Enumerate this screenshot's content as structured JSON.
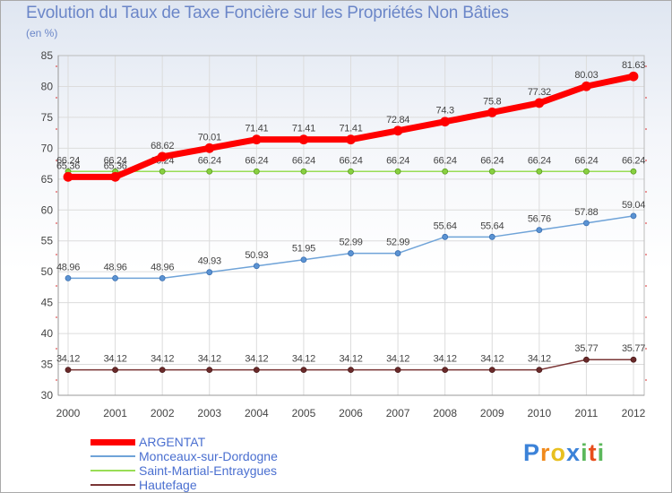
{
  "header": {
    "title": "Evolution du Taux de Taxe Foncière sur les Propriétés Non Bâties",
    "subtitle": "(en %)"
  },
  "chart_data": {
    "type": "line",
    "title": "Evolution du Taux de Taxe Foncière sur les Propriétés Non Bâties",
    "ylabel": "(en %)",
    "xlabel": "",
    "x": [
      "2000",
      "2001",
      "2002",
      "2003",
      "2004",
      "2005",
      "2006",
      "2007",
      "2008",
      "2009",
      "2010",
      "2011",
      "2012"
    ],
    "ylim": [
      30,
      85
    ],
    "yticks": [
      30,
      35,
      40,
      45,
      50,
      55,
      60,
      65,
      70,
      75,
      80,
      85
    ],
    "grid": true,
    "legend_position": "bottom-left",
    "series": [
      {
        "name": "ARGENTAT",
        "color": "#ff0000",
        "values": [
          65.36,
          65.36,
          68.62,
          70.01,
          71.41,
          71.41,
          71.41,
          72.84,
          74.3,
          75.8,
          77.32,
          80.03,
          81.63
        ],
        "labels": [
          "65.36",
          "65.36",
          "68.62",
          "70.01",
          "71.41",
          "71.41",
          "71.41",
          "72.84",
          "74.3",
          "75.8",
          "77.32",
          "80.03",
          "81.63"
        ]
      },
      {
        "name": "Monceaux-sur-Dordogne",
        "color": "#6fa3d8",
        "values": [
          48.96,
          48.96,
          48.96,
          49.93,
          50.93,
          51.95,
          52.99,
          52.99,
          55.64,
          55.64,
          56.76,
          57.88,
          59.04
        ],
        "labels": [
          "48.96",
          "48.96",
          "48.96",
          "49.93",
          "50.93",
          "51.95",
          "52.99",
          "52.99",
          "55.64",
          "55.64",
          "56.76",
          "57.88",
          "59.04"
        ]
      },
      {
        "name": "Saint-Martial-Entraygues",
        "color": "#99dd55",
        "values": [
          66.24,
          66.24,
          66.24,
          66.24,
          66.24,
          66.24,
          66.24,
          66.24,
          66.24,
          66.24,
          66.24,
          66.24,
          66.24
        ],
        "labels": [
          "66.24",
          "66.24",
          "66.24",
          "66.24",
          "66.24",
          "66.24",
          "66.24",
          "66.24",
          "66.24",
          "66.24",
          "66.24",
          "66.24",
          "66.24"
        ]
      },
      {
        "name": "Hautefage",
        "color": "#7a3535",
        "values": [
          34.12,
          34.12,
          34.12,
          34.12,
          34.12,
          34.12,
          34.12,
          34.12,
          34.12,
          34.12,
          34.12,
          35.77,
          35.77
        ],
        "labels": [
          "34.12",
          "34.12",
          "34.12",
          "34.12",
          "34.12",
          "34.12",
          "34.12",
          "34.12",
          "34.12",
          "34.12",
          "34.12",
          "35.77",
          "35.77"
        ]
      }
    ]
  },
  "legend": {
    "items": [
      {
        "name": "ARGENTAT",
        "color": "#ff0000"
      },
      {
        "name": "Monceaux-sur-Dordogne",
        "color": "#6fa3d8"
      },
      {
        "name": "Saint-Martial-Entraygues",
        "color": "#99dd55"
      },
      {
        "name": "Hautefage",
        "color": "#7a3535"
      }
    ]
  },
  "brand": {
    "letters": [
      "P",
      "r",
      "o",
      "x",
      "i",
      "t",
      "i"
    ],
    "colors": [
      "#3b82d8",
      "#f08a1c",
      "#e8c020",
      "#3b82d8",
      "#5cb85c",
      "#e84e1c",
      "#5cb85c"
    ]
  }
}
